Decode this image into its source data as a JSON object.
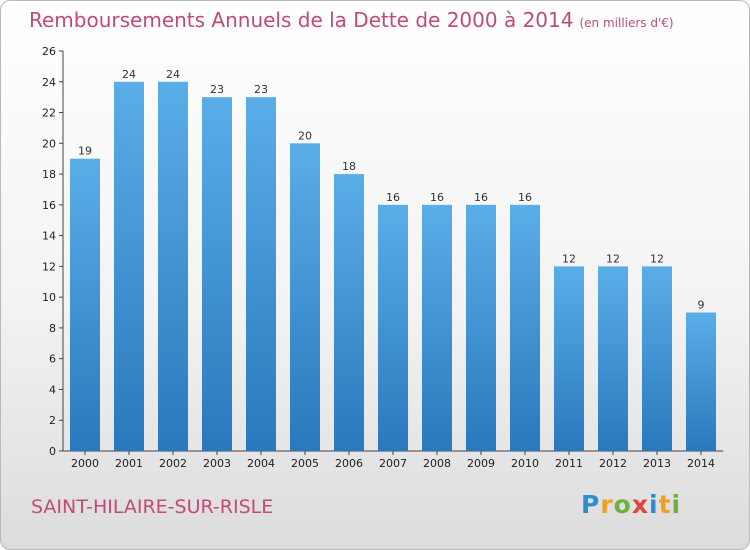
{
  "header": {
    "title": "Remboursements Annuels de la Dette de 2000 à 2014",
    "unit": "(en milliers d'€)"
  },
  "footer": {
    "commune": "SAINT-HILAIRE-SUR-RISLE",
    "logo": [
      "P",
      "r",
      "o",
      "x",
      "i",
      "t",
      "i"
    ]
  },
  "colors": {
    "bar_top": "#5aaee8",
    "bar_bottom": "#2a78bd",
    "title": "#c14a76"
  },
  "chart_data": {
    "type": "bar",
    "title": "Remboursements Annuels de la Dette de 2000 à 2014",
    "xlabel": "",
    "ylabel": "",
    "categories": [
      "2000",
      "2001",
      "2002",
      "2003",
      "2004",
      "2005",
      "2006",
      "2007",
      "2008",
      "2009",
      "2010",
      "2011",
      "2012",
      "2013",
      "2014"
    ],
    "values": [
      19,
      24,
      24,
      23,
      23,
      20,
      18,
      16,
      16,
      16,
      16,
      12,
      12,
      12,
      9
    ],
    "value_labels": [
      "19",
      "24",
      "24",
      "23",
      "23",
      "20",
      "18",
      "16",
      "16",
      "16",
      "16",
      "12",
      "12",
      "12",
      "9"
    ],
    "ylim": [
      0,
      26
    ],
    "yticks": [
      0,
      2,
      4,
      6,
      8,
      10,
      12,
      14,
      16,
      18,
      20,
      22,
      24,
      26
    ],
    "grid": false,
    "legend": "none"
  }
}
